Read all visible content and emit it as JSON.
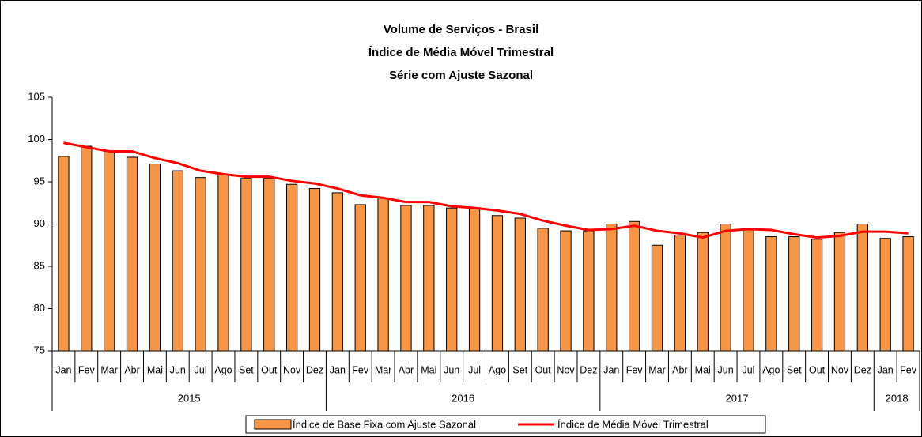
{
  "chart_data": {
    "type": "bar_line",
    "title": [
      "Volume de Serviços - Brasil",
      "Índice de Média Móvel Trimestral",
      "Série com Ajuste Sazonal"
    ],
    "category_groups": [
      {
        "label": "2015",
        "categories": [
          "Jan",
          "Fev",
          "Mar",
          "Abr",
          "Mai",
          "Jun",
          "Jul",
          "Ago",
          "Set",
          "Out",
          "Nov",
          "Dez"
        ]
      },
      {
        "label": "2016",
        "categories": [
          "Jan",
          "Fev",
          "Mar",
          "Abr",
          "Mai",
          "Jun",
          "Jul",
          "Ago",
          "Set",
          "Out",
          "Nov",
          "Dez"
        ]
      },
      {
        "label": "2017",
        "categories": [
          "Jan",
          "Fev",
          "Mar",
          "Abr",
          "Mai",
          "Jun",
          "Jul",
          "Ago",
          "Set",
          "Out",
          "Nov",
          "Dez"
        ]
      },
      {
        "label": "2018",
        "categories": [
          "Jan",
          "Fev"
        ]
      }
    ],
    "series": [
      {
        "name": "Índice de Base Fixa com Ajuste Sazonal",
        "type": "bar",
        "color": "#f79646",
        "values": [
          98.0,
          99.2,
          98.6,
          97.9,
          97.1,
          96.3,
          95.5,
          95.9,
          95.4,
          95.4,
          94.7,
          94.2,
          93.7,
          92.3,
          93.1,
          92.2,
          92.2,
          91.9,
          91.9,
          91.0,
          90.7,
          89.5,
          89.2,
          89.2,
          90.0,
          90.3,
          87.5,
          88.7,
          89.0,
          90.0,
          89.4,
          88.5,
          88.5,
          88.2,
          89.0,
          90.0,
          88.3,
          88.5
        ]
      },
      {
        "name": "Índice de Média Móvel Trimestral",
        "type": "line",
        "color": "#ff0000",
        "values": [
          99.6,
          99.1,
          98.6,
          98.6,
          97.8,
          97.2,
          96.3,
          95.9,
          95.6,
          95.6,
          95.1,
          94.8,
          94.2,
          93.4,
          93.1,
          92.6,
          92.6,
          92.1,
          91.9,
          91.6,
          91.2,
          90.4,
          89.8,
          89.3,
          89.4,
          89.8,
          89.2,
          88.9,
          88.4,
          89.2,
          89.4,
          89.3,
          88.8,
          88.4,
          88.6,
          89.1,
          89.1,
          88.9
        ]
      }
    ],
    "ylim": [
      75,
      105
    ],
    "yticks": [
      75,
      80,
      85,
      90,
      95,
      100,
      105
    ],
    "legend": "bottom"
  }
}
